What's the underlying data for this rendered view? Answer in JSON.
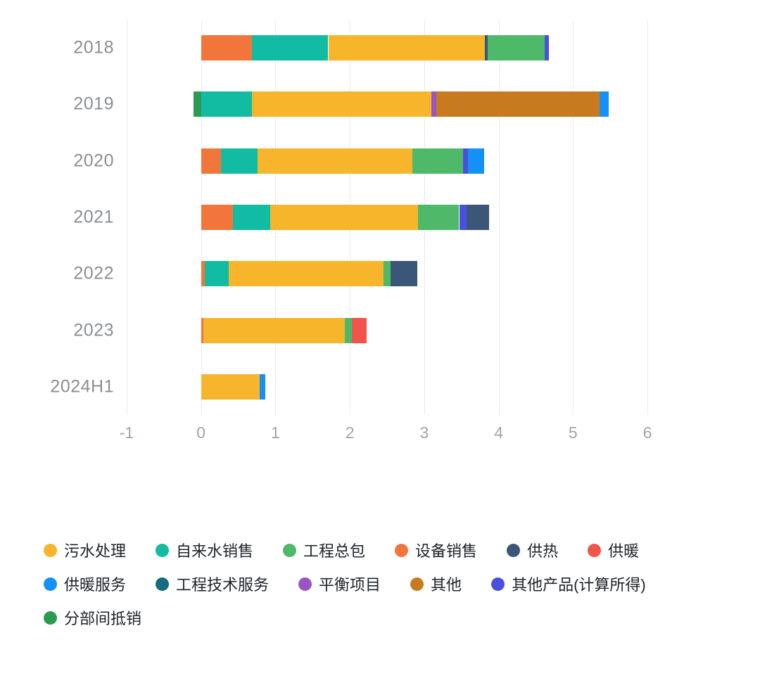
{
  "chart_data": {
    "type": "bar",
    "orientation": "horizontal",
    "stacked": true,
    "title": "",
    "xlabel": "",
    "ylabel": "",
    "grid": true,
    "legend_position": "bottom",
    "x_axis": {
      "min": -1,
      "max": 6,
      "ticks": [
        -1,
        0,
        1,
        2,
        3,
        4,
        5,
        6
      ]
    },
    "categories": [
      "2018",
      "2019",
      "2020",
      "2021",
      "2022",
      "2023",
      "2024H1"
    ],
    "colors": {
      "污水处理": "#F7B52C",
      "自来水销售": "#12BCA2",
      "工程总包": "#4FB96A",
      "设备销售": "#F2763B",
      "供热": "#3C5677",
      "供暖": "#F0544C",
      "供暖服务": "#1590F5",
      "工程技术服务": "#166B7E",
      "平衡项目": "#9A55C5",
      "其他": "#C77B1E",
      "其他产品(计算所得)": "#4A50DE",
      "分部间抵销": "#2C9B52"
    },
    "bars": [
      {
        "category": "2018",
        "segments": [
          {
            "name": "设备销售",
            "value": 0.68
          },
          {
            "name": "自来水销售",
            "value": 1.03
          },
          {
            "name": "污水处理",
            "value": 2.1
          },
          {
            "name": "供热",
            "value": 0.04
          },
          {
            "name": "工程总包",
            "value": 0.77
          },
          {
            "name": "其他产品(计算所得)",
            "value": 0.06
          }
        ]
      },
      {
        "category": "2019",
        "segments": [
          {
            "name": "分部间抵销",
            "value": -0.1
          },
          {
            "name": "自来水销售",
            "value": 0.68
          },
          {
            "name": "污水处理",
            "value": 2.42
          },
          {
            "name": "平衡项目",
            "value": 0.06
          },
          {
            "name": "其他",
            "value": 2.2
          },
          {
            "name": "供暖服务",
            "value": 0.12
          }
        ]
      },
      {
        "category": "2020",
        "segments": [
          {
            "name": "设备销售",
            "value": 0.27
          },
          {
            "name": "自来水销售",
            "value": 0.49
          },
          {
            "name": "污水处理",
            "value": 2.08
          },
          {
            "name": "工程总包",
            "value": 0.68
          },
          {
            "name": "其他产品(计算所得)",
            "value": 0.07
          },
          {
            "name": "供暖服务",
            "value": 0.22
          }
        ]
      },
      {
        "category": "2021",
        "segments": [
          {
            "name": "设备销售",
            "value": 0.43
          },
          {
            "name": "自来水销售",
            "value": 0.5
          },
          {
            "name": "污水处理",
            "value": 1.99
          },
          {
            "name": "工程总包",
            "value": 0.55
          },
          {
            "name": "其他产品(计算所得)",
            "value": 0.1
          },
          {
            "name": "供热",
            "value": 0.3
          }
        ]
      },
      {
        "category": "2022",
        "segments": [
          {
            "name": "设备销售",
            "value": 0.05
          },
          {
            "name": "自来水销售",
            "value": 0.32
          },
          {
            "name": "污水处理",
            "value": 2.08
          },
          {
            "name": "工程总包",
            "value": 0.1
          },
          {
            "name": "供热",
            "value": 0.36
          }
        ]
      },
      {
        "category": "2023",
        "segments": [
          {
            "name": "设备销售",
            "value": 0.03
          },
          {
            "name": "污水处理",
            "value": 1.9
          },
          {
            "name": "工程总包",
            "value": 0.1
          },
          {
            "name": "供暖",
            "value": 0.2
          }
        ]
      },
      {
        "category": "2024H1",
        "segments": [
          {
            "name": "污水处理",
            "value": 0.79
          },
          {
            "name": "供暖服务",
            "value": 0.07
          }
        ]
      }
    ],
    "legend_rows": [
      [
        "污水处理",
        "自来水销售",
        "工程总包",
        "设备销售",
        "供热",
        "供暖"
      ],
      [
        "供暖服务",
        "工程技术服务",
        "平衡项目",
        "其他",
        "其他产品(计算所得)"
      ],
      [
        "分部间抵销"
      ]
    ]
  }
}
